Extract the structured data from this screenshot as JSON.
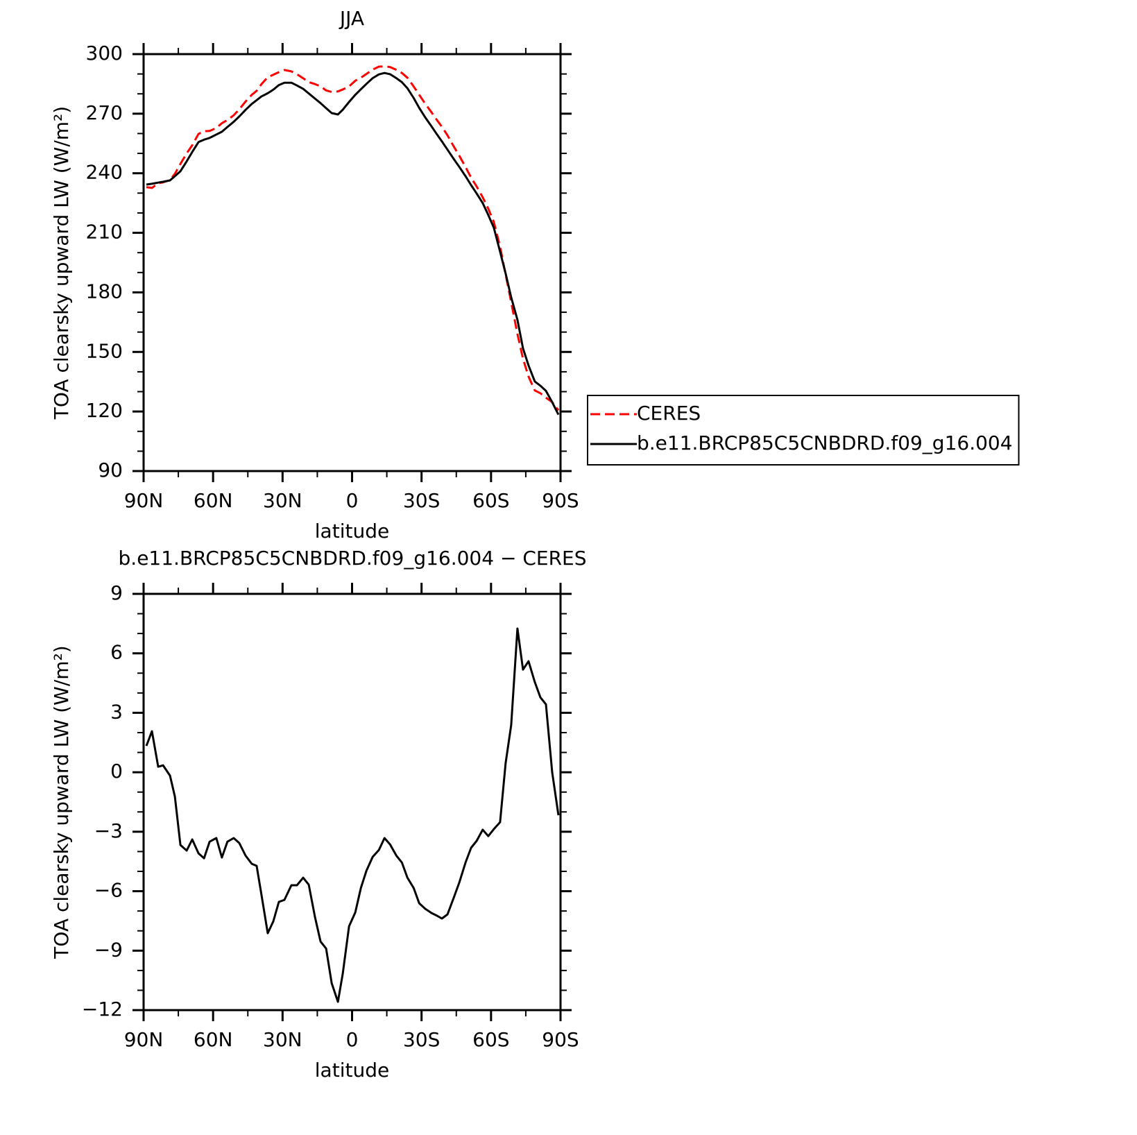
{
  "chart_data": [
    {
      "type": "line",
      "title": "JJA",
      "xlabel": "latitude",
      "ylabel": "TOA clearsky upward LW (W/m²)",
      "x": [
        88.8,
        86.4,
        83.7,
        81.6,
        78.6,
        76.5,
        74.1,
        71.4,
        69.0,
        66.3,
        63.9,
        61.5,
        58.6,
        56.2,
        53.8,
        51.1,
        48.7,
        46.0,
        43.3,
        41.2,
        39.1,
        36.4,
        34.0,
        31.6,
        29.2,
        26.2,
        23.8,
        21.1,
        18.7,
        16.0,
        13.6,
        11.2,
        8.8,
        6.1,
        4.0,
        1.3,
        -1.4,
        -3.8,
        -6.2,
        -8.9,
        -11.6,
        -14.0,
        -16.4,
        -19.1,
        -21.5,
        -23.9,
        -26.6,
        -29.0,
        -31.6,
        -34.3,
        -36.7,
        -38.8,
        -41.2,
        -43.9,
        -46.3,
        -49.0,
        -51.4,
        -53.8,
        -56.4,
        -58.8,
        -61.2,
        -63.9,
        -66.3,
        -68.7,
        -71.4,
        -73.8,
        -76.2,
        -78.9,
        -81.3,
        -83.7,
        -86.4,
        -89.1
      ],
      "xlim": [
        90,
        -90
      ],
      "xticks": [
        {
          "value": 90,
          "label": "90N"
        },
        {
          "value": 60,
          "label": "60N"
        },
        {
          "value": 30,
          "label": "30N"
        },
        0,
        {
          "value": -30,
          "label": "30S"
        },
        {
          "value": -60,
          "label": "60S"
        },
        {
          "value": -90,
          "label": "90S"
        }
      ],
      "ylim": [
        90,
        300
      ],
      "yticks": [
        90,
        120,
        150,
        180,
        210,
        240,
        270,
        300
      ],
      "legend": "right",
      "series": [
        {
          "name": "CERES",
          "color": "#ff0000",
          "line_style": "dashed",
          "values": [
            233.0,
            232.6,
            235.0,
            235.4,
            236.6,
            239.7,
            244.7,
            250.0,
            254.1,
            259.8,
            261.2,
            261.3,
            262.8,
            265.2,
            266.8,
            269.2,
            272.2,
            276.1,
            279.5,
            281.5,
            284.9,
            288.4,
            289.6,
            290.9,
            292.0,
            291.3,
            289.9,
            287.8,
            285.9,
            284.9,
            283.8,
            281.7,
            280.9,
            281.2,
            282.2,
            283.7,
            286.6,
            288.1,
            290.0,
            292.2,
            293.7,
            293.8,
            293.5,
            292.1,
            290.5,
            288.1,
            283.7,
            279.5,
            275.0,
            270.7,
            266.7,
            263.4,
            259.1,
            253.5,
            248.8,
            243.1,
            237.8,
            233.3,
            227.9,
            222.2,
            215.5,
            203.0,
            189.0,
            175.1,
            159.0,
            146.6,
            137.6,
            130.6,
            129.2,
            127.0,
            124.7,
            120.6
          ]
        },
        {
          "name": "b.e11.BRCP85C5CNBDRD.f09_g16.004",
          "color": "#000000",
          "line_style": "solid",
          "values": [
            234.3,
            234.7,
            235.3,
            235.7,
            236.4,
            238.5,
            241.0,
            246.0,
            250.7,
            255.7,
            256.9,
            257.8,
            259.5,
            260.9,
            263.3,
            265.9,
            268.6,
            271.9,
            274.9,
            276.8,
            278.7,
            280.3,
            282.1,
            284.4,
            285.6,
            285.6,
            284.2,
            282.5,
            280.2,
            277.6,
            275.3,
            272.8,
            270.3,
            269.6,
            272.0,
            275.9,
            279.5,
            282.3,
            285.0,
            287.9,
            289.8,
            290.5,
            289.9,
            287.9,
            285.9,
            282.8,
            277.9,
            272.9,
            268.1,
            263.6,
            259.5,
            256.0,
            251.9,
            247.2,
            243.2,
            238.5,
            234.0,
            229.8,
            225.0,
            219.0,
            212.6,
            200.5,
            189.5,
            177.5,
            166.2,
            151.8,
            143.2,
            135.1,
            133.0,
            130.4,
            124.7,
            118.4
          ]
        }
      ]
    },
    {
      "type": "line",
      "title": "b.e11.BRCP85C5CNBDRD.f09_g16.004 − CERES",
      "xlabel": "latitude",
      "ylabel": "TOA clearsky upward LW (W/m²)",
      "x": [
        88.8,
        86.4,
        83.7,
        81.6,
        78.6,
        76.5,
        74.1,
        71.4,
        69.0,
        66.3,
        63.9,
        61.5,
        58.6,
        56.2,
        53.8,
        51.1,
        48.7,
        46.0,
        43.3,
        41.2,
        39.1,
        36.4,
        34.0,
        31.6,
        29.2,
        26.2,
        23.8,
        21.1,
        18.7,
        16.0,
        13.6,
        11.2,
        8.8,
        6.1,
        4.0,
        1.3,
        -1.4,
        -3.8,
        -6.2,
        -8.9,
        -11.6,
        -14.0,
        -16.4,
        -19.1,
        -21.5,
        -23.9,
        -26.6,
        -29.0,
        -31.6,
        -34.3,
        -36.7,
        -38.8,
        -41.2,
        -43.9,
        -46.3,
        -49.0,
        -51.4,
        -53.8,
        -56.4,
        -58.8,
        -61.2,
        -63.9,
        -66.3,
        -68.7,
        -71.4,
        -73.8,
        -76.2,
        -78.9,
        -81.3,
        -83.7,
        -86.4,
        -89.1
      ],
      "xlim": [
        90,
        -90
      ],
      "xticks": [
        {
          "value": 90,
          "label": "90N"
        },
        {
          "value": 60,
          "label": "60N"
        },
        {
          "value": 30,
          "label": "30N"
        },
        0,
        {
          "value": -30,
          "label": "30S"
        },
        {
          "value": -60,
          "label": "60S"
        },
        {
          "value": -90,
          "label": "90S"
        }
      ],
      "ylim": [
        -12,
        9
      ],
      "yticks": [
        {
          "value": -12,
          "label": "−12"
        },
        {
          "value": -9,
          "label": "−9"
        },
        {
          "value": -6,
          "label": "−6"
        },
        {
          "value": -3,
          "label": "−3"
        },
        0,
        3,
        6,
        9
      ],
      "color": "#000000",
      "values": [
        1.33,
        2.07,
        0.28,
        0.35,
        -0.17,
        -1.22,
        -3.67,
        -3.95,
        -3.39,
        -4.09,
        -4.34,
        -3.5,
        -3.32,
        -4.3,
        -3.5,
        -3.32,
        -3.57,
        -4.2,
        -4.62,
        -4.72,
        -6.19,
        -8.12,
        -7.52,
        -6.54,
        -6.44,
        -5.7,
        -5.7,
        -5.32,
        -5.67,
        -7.31,
        -8.54,
        -8.89,
        -10.64,
        -11.58,
        -10.15,
        -7.77,
        -7.07,
        -5.84,
        -4.97,
        -4.27,
        -3.92,
        -3.32,
        -3.64,
        -4.2,
        -4.55,
        -5.32,
        -5.84,
        -6.61,
        -6.89,
        -7.1,
        -7.24,
        -7.38,
        -7.17,
        -6.33,
        -5.56,
        -4.55,
        -3.81,
        -3.46,
        -2.9,
        -3.22,
        -2.87,
        -2.52,
        0.46,
        2.38,
        7.25,
        5.18,
        5.6,
        4.55,
        3.78,
        3.43,
        0.0,
        -2.17
      ]
    }
  ]
}
